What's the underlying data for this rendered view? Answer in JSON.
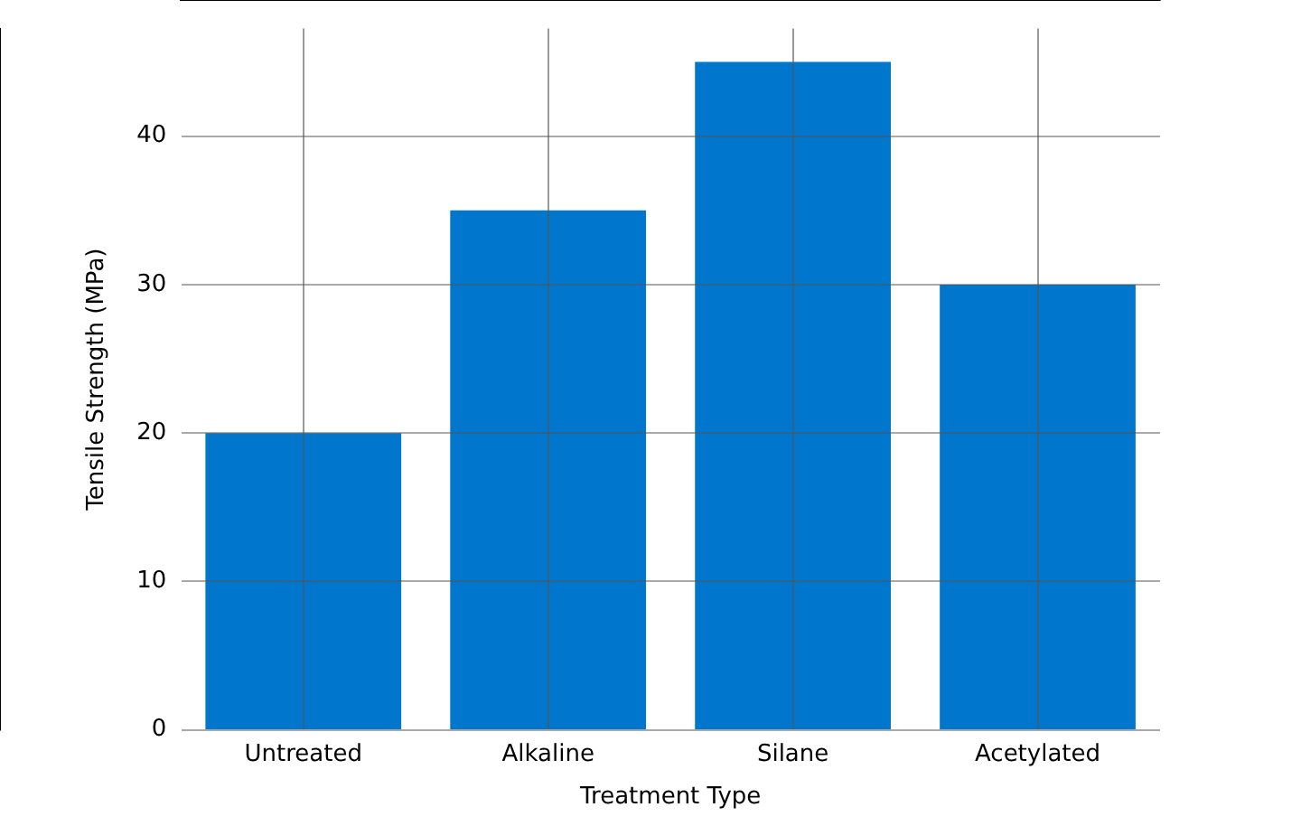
{
  "chart_data": {
    "type": "bar",
    "xlabel": "Treatment Type",
    "ylabel": "Tensile Strength (MPa)",
    "categories": [
      "Untreated",
      "Alkaline",
      "Silane",
      "Acetylated"
    ],
    "values": [
      20,
      35,
      45,
      30
    ],
    "color": "#0077cc",
    "ylim": [
      0,
      47.25
    ],
    "yticks": [
      0,
      10,
      20,
      30,
      40
    ],
    "grid": true
  }
}
